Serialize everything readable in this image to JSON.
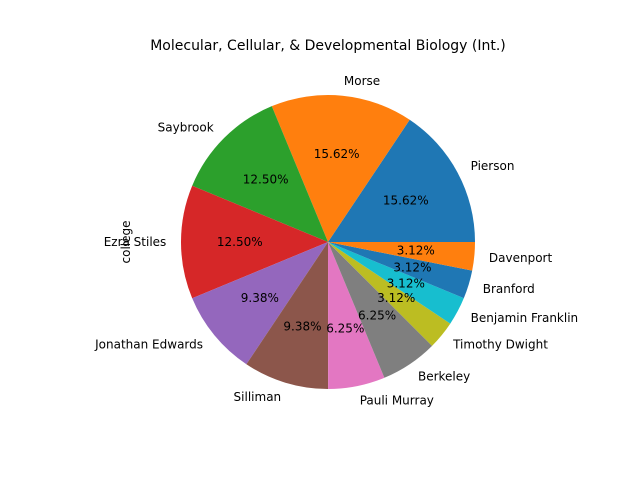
{
  "chart_data": {
    "type": "pie",
    "title": "Molecular, Cellular, & Developmental Biology (Int.)",
    "ylabel": "college",
    "start_angle_deg": 0,
    "direction": "counterclockwise",
    "slices": [
      {
        "label": "Pierson",
        "value": 15.62,
        "pct_label": "15.62%",
        "color": "#1f77b4"
      },
      {
        "label": "Morse",
        "value": 15.62,
        "pct_label": "15.62%",
        "color": "#ff7f0e"
      },
      {
        "label": "Saybrook",
        "value": 12.5,
        "pct_label": "12.50%",
        "color": "#2ca02c"
      },
      {
        "label": "Ezra Stiles",
        "value": 12.5,
        "pct_label": "12.50%",
        "color": "#d62728"
      },
      {
        "label": "Jonathan Edwards",
        "value": 9.38,
        "pct_label": "9.38%",
        "color": "#9467bd"
      },
      {
        "label": "Silliman",
        "value": 9.38,
        "pct_label": "9.38%",
        "color": "#8c564b"
      },
      {
        "label": "Pauli Murray",
        "value": 6.25,
        "pct_label": "6.25%",
        "color": "#e377c2"
      },
      {
        "label": "Berkeley",
        "value": 6.25,
        "pct_label": "6.25%",
        "color": "#7f7f7f"
      },
      {
        "label": "Timothy Dwight",
        "value": 3.12,
        "pct_label": "3.12%",
        "color": "#bcbd22"
      },
      {
        "label": "Benjamin Franklin",
        "value": 3.12,
        "pct_label": "3.12%",
        "color": "#17becf"
      },
      {
        "label": "Branford",
        "value": 3.12,
        "pct_label": "3.12%",
        "color": "#1f77b4"
      },
      {
        "label": "Davenport",
        "value": 3.12,
        "pct_label": "3.12%",
        "color": "#ff7f0e"
      }
    ]
  }
}
